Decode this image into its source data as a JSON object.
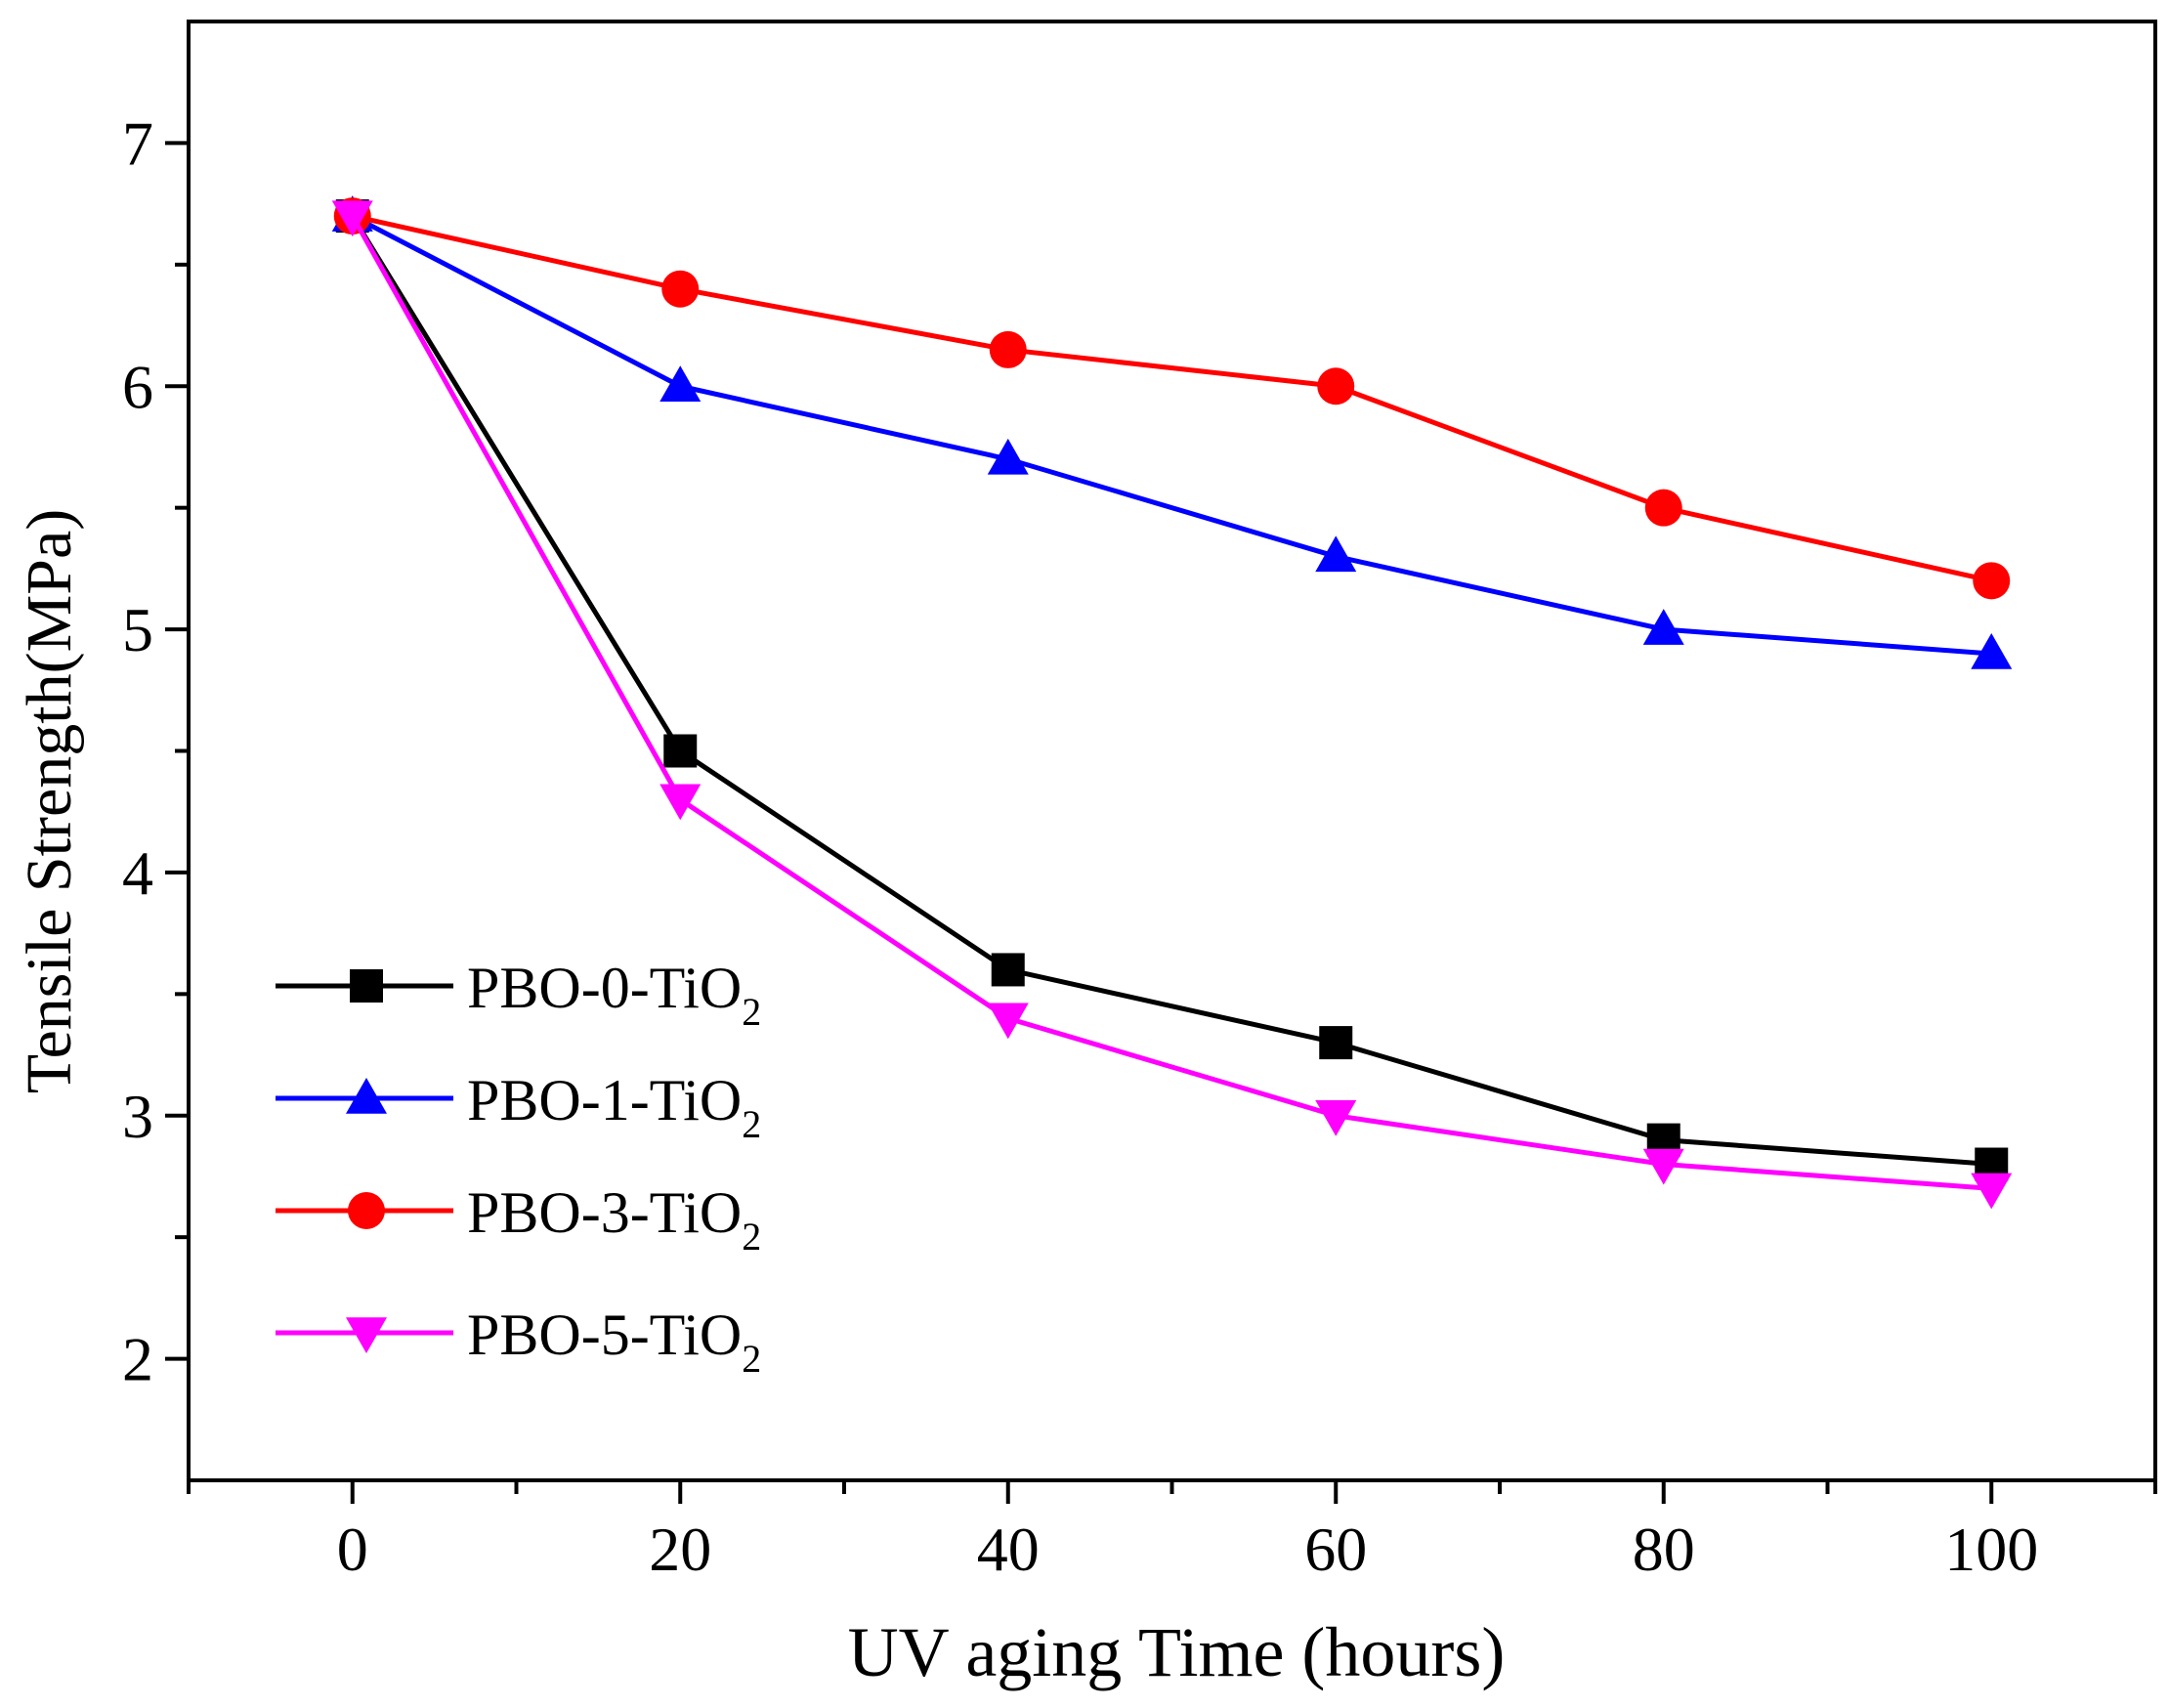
{
  "chart_data": {
    "type": "line",
    "title": "",
    "xlabel": "UV aging Time (hours)",
    "ylabel": "Tensile Strength(MPa)",
    "xlim": [
      -10,
      110
    ],
    "ylim": [
      1.5,
      7.5
    ],
    "xticks": [
      0,
      20,
      40,
      60,
      80,
      100
    ],
    "xtick_labels": [
      "0",
      "20",
      "40",
      "60",
      "80",
      "100"
    ],
    "yticks": [
      2,
      3,
      4,
      5,
      6,
      7
    ],
    "ytick_labels": [
      "2",
      "3",
      "4",
      "5",
      "6",
      "7"
    ],
    "x": [
      0,
      20,
      40,
      60,
      80,
      100
    ],
    "grid": false,
    "legend_position": "lower-left",
    "series": [
      {
        "name": "PBO-0-TiO",
        "subscript": "2",
        "color": "#000000",
        "marker": "square",
        "values": [
          6.7,
          4.5,
          3.6,
          3.3,
          2.9,
          2.8
        ]
      },
      {
        "name": "PBO-1-TiO",
        "subscript": "2",
        "color": "#0000ff",
        "marker": "triangle-up",
        "values": [
          6.7,
          6.0,
          5.7,
          5.3,
          5.0,
          4.9
        ]
      },
      {
        "name": "PBO-3-TiO",
        "subscript": "2",
        "color": "#ff0000",
        "marker": "circle",
        "values": [
          6.7,
          6.4,
          6.15,
          6.0,
          5.5,
          5.2
        ]
      },
      {
        "name": "PBO-5-TiO",
        "subscript": "2",
        "color": "#ff00ff",
        "marker": "triangle-down",
        "values": [
          6.7,
          4.3,
          3.4,
          3.0,
          2.8,
          2.7
        ]
      }
    ]
  }
}
